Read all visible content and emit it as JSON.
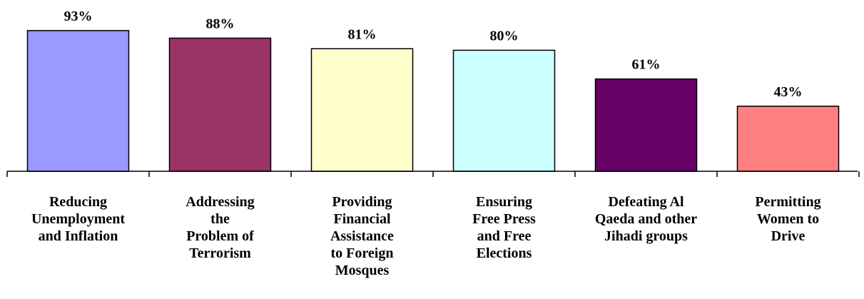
{
  "chart_data": {
    "type": "bar",
    "categories": [
      "Reducing\nUnemployment\nand Inflation",
      "Addressing\nthe\nProblem of\nTerrorism",
      "Providing\nFinancial\nAssistance\nto Foreign\nMosques",
      "Ensuring\nFree Press\nand Free\nElections",
      "Defeating Al\nQaeda and other\nJihadi groups",
      "Permitting\nWomen to\nDrive"
    ],
    "values": [
      93,
      88,
      81,
      80,
      61,
      43
    ],
    "value_labels": [
      "93%",
      "88%",
      "81%",
      "80%",
      "61%",
      "43%"
    ],
    "colors": [
      "#9999ff",
      "#993366",
      "#ffffcc",
      "#ccffff",
      "#660066",
      "#ff8080"
    ]
  }
}
